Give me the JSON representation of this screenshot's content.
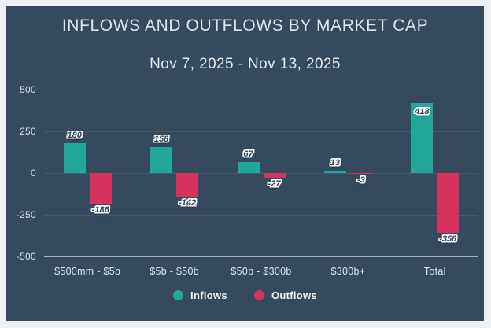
{
  "title": "INFLOWS AND OUTFLOWS BY MARKET CAP",
  "subtitle": "Nov 7, 2025 - Nov 13, 2025",
  "colors": {
    "frame_bg": "#eef1f4",
    "panel_bg": "#364a5e",
    "inflows": "#22a79b",
    "outflows": "#d5325f",
    "axis_line": "#a6b1bb",
    "grid_line": "rgba(255,255,255,0.09)",
    "tick_text": "#d9dfe5",
    "data_label_text": "#2b3e51"
  },
  "chart_data": {
    "type": "bar",
    "title": "INFLOWS AND OUTFLOWS BY MARKET CAP",
    "subtitle": "Nov 7, 2025 - Nov 13, 2025",
    "categories": [
      "$500mm - $5b",
      "$5b - $50b",
      "$50b - $300b",
      "$300b+",
      "Total"
    ],
    "series": [
      {
        "name": "Inflows",
        "color": "#22a79b",
        "values": [
          180,
          158,
          67,
          13,
          418
        ]
      },
      {
        "name": "Outflows",
        "color": "#d5325f",
        "values": [
          -186,
          -142,
          -27,
          -3,
          -358
        ]
      }
    ],
    "ylim": [
      -500,
      500
    ],
    "yticks": [
      500,
      250,
      0,
      -250,
      -500
    ],
    "grid": true,
    "legend_position": "bottom",
    "xlabel": "",
    "ylabel": ""
  },
  "legend": {
    "items": [
      {
        "label": "Inflows",
        "color": "#22a79b"
      },
      {
        "label": "Outflows",
        "color": "#d5325f"
      }
    ]
  }
}
